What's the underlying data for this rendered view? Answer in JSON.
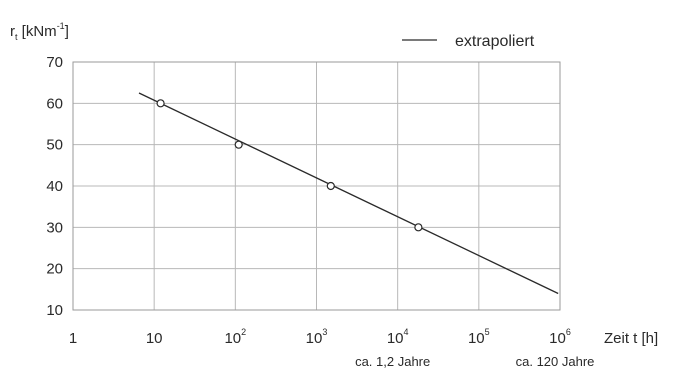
{
  "chart_data": {
    "type": "line",
    "title": "",
    "xlabel": "Zeit t [h]",
    "ylabel": {
      "symbol": "r",
      "subscript": "t",
      "unit_open": " [kNm",
      "unit_exp": "-1",
      "unit_close": "]"
    },
    "x_scale": "log",
    "xlim": [
      1,
      1000000
    ],
    "ylim": [
      10,
      70
    ],
    "grid": true,
    "x_ticks": [
      {
        "x": 1,
        "base": "1",
        "exp": ""
      },
      {
        "x": 10,
        "base": "10",
        "exp": ""
      },
      {
        "x": 100,
        "base": "10",
        "exp": "2"
      },
      {
        "x": 1000,
        "base": "10",
        "exp": "3"
      },
      {
        "x": 10000,
        "base": "10",
        "exp": "4"
      },
      {
        "x": 100000,
        "base": "10",
        "exp": "5"
      },
      {
        "x": 1000000,
        "base": "10",
        "exp": "6"
      }
    ],
    "y_ticks": [
      "10",
      "20",
      "30",
      "40",
      "50",
      "60",
      "70"
    ],
    "legend": {
      "position": "top-right",
      "entries": [
        "extrapoliert"
      ]
    },
    "series": [
      {
        "name": "extrapoliert",
        "style": "line",
        "x": [
          6.5,
          950000
        ],
        "y": [
          62.5,
          14
        ]
      },
      {
        "style": "markers",
        "marker": "open-circle",
        "x": [
          12,
          110,
          1500,
          18000
        ],
        "y": [
          60,
          50,
          40,
          30
        ]
      }
    ],
    "annotations": [
      {
        "text": "ca. 1,2 Jahre",
        "x": 10000
      },
      {
        "text": "ca. 120 Jahre",
        "x": 1000000
      }
    ]
  }
}
